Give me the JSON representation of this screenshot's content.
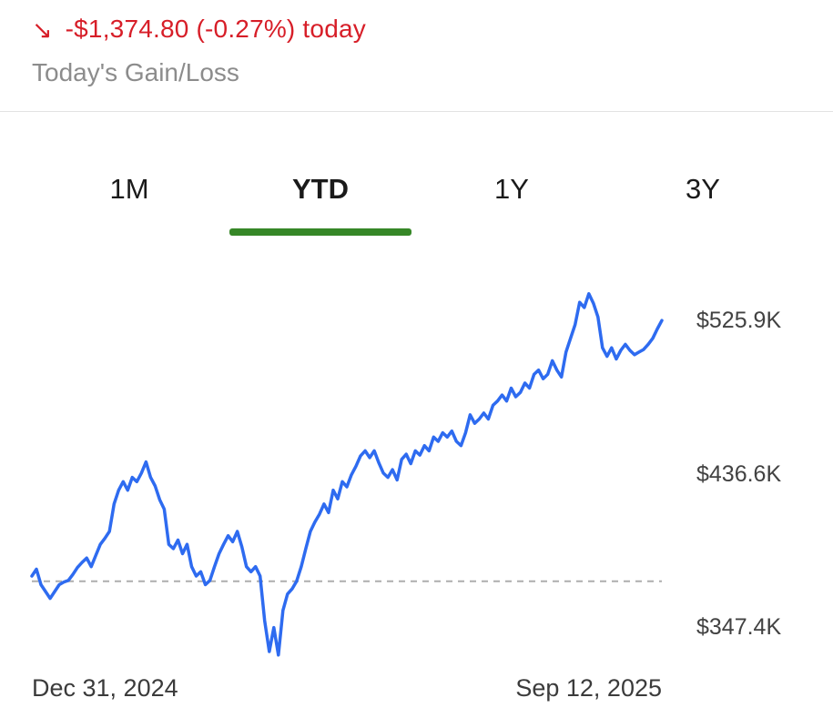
{
  "colors": {
    "red": "#d71e28",
    "green": "#368727",
    "blue": "#2e6bf0",
    "gray": "#8c8c8c"
  },
  "header": {
    "arrow_icon": "↘",
    "gain_loss_value": "-$1,374.80 (-0.27%) today",
    "subtitle": "Today's Gain/Loss"
  },
  "tabs": [
    {
      "label": "1M",
      "active": false
    },
    {
      "label": "YTD",
      "active": true
    },
    {
      "label": "1Y",
      "active": false
    },
    {
      "label": "3Y",
      "active": false
    }
  ],
  "chart_data": {
    "type": "line",
    "title": "",
    "xlabel": "",
    "ylabel": "",
    "x_start_label": "Dec 31, 2024",
    "x_end_label": "Sep 12, 2025",
    "y_tick_labels": [
      "$525.9K",
      "$436.6K",
      "$347.4K"
    ],
    "y_tick_values": [
      525.9,
      436.6,
      347.4
    ],
    "unit": "thousand USD",
    "baseline_value": 374.0,
    "baseline_style": "dashed",
    "ylim": [
      324,
      552
    ],
    "grid": false,
    "legend": false,
    "last_value": 525.9,
    "values": [
      377,
      381,
      372,
      368,
      364,
      368,
      372,
      373.5,
      374.5,
      378,
      382,
      385,
      387.5,
      382.5,
      389,
      395.5,
      399,
      403,
      419,
      427,
      432,
      427,
      434.5,
      432,
      437,
      443.5,
      434.5,
      429.5,
      421.5,
      416,
      395.5,
      393,
      398,
      390,
      395.5,
      382.5,
      377,
      379.5,
      372,
      374.5,
      382.5,
      390,
      395.5,
      400.5,
      397,
      403,
      394,
      382.5,
      379.5,
      382.5,
      377,
      351,
      333,
      347,
      331,
      357,
      366.5,
      369.5,
      374,
      382.5,
      393,
      403,
      408.5,
      413,
      419,
      414,
      427,
      422,
      432,
      429,
      436,
      441,
      447,
      450,
      446,
      450,
      443,
      437,
      434.5,
      439,
      433,
      445,
      448,
      442.5,
      450,
      447.5,
      453,
      450,
      458,
      455.5,
      460.5,
      458,
      461.5,
      455.5,
      453,
      460.5,
      471,
      466,
      468.5,
      472,
      468.5,
      476.5,
      479,
      482.5,
      479,
      486.5,
      481.5,
      484,
      489.5,
      486.5,
      494.5,
      497,
      492,
      494.5,
      502.5,
      497,
      493,
      507.5,
      515.5,
      523.5,
      536.5,
      533.5,
      541.5,
      536,
      528,
      510,
      505,
      510,
      503.5,
      508.5,
      512,
      508.5,
      506,
      507.5,
      509,
      512,
      515.5,
      521,
      525.9
    ]
  }
}
